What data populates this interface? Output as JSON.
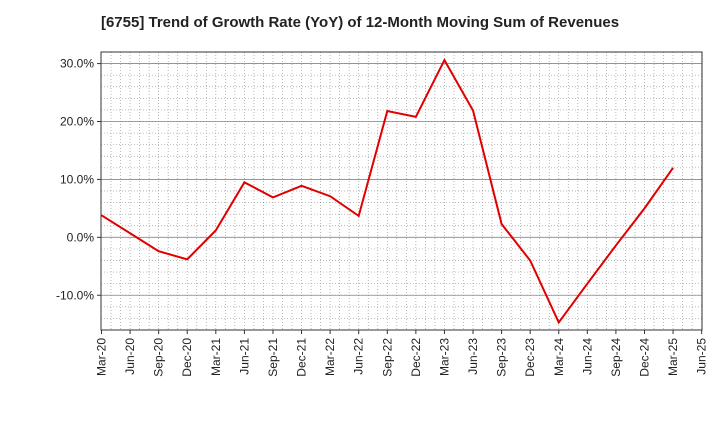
{
  "chart_data": {
    "type": "line",
    "title": "[6755]  Trend of Growth Rate (YoY) of 12-Month Moving Sum of Revenues",
    "xlabel": "",
    "ylabel": "",
    "ylim": [
      -16,
      32
    ],
    "y_ticks": [
      30,
      20,
      10,
      0,
      -10
    ],
    "y_tick_labels": [
      "30.0%",
      "20.0%",
      "10.0%",
      "0.0%",
      "-10.0%"
    ],
    "x_tick_labels": [
      "Mar-20",
      "Jun-20",
      "Sep-20",
      "Dec-20",
      "Mar-21",
      "Jun-21",
      "Sep-21",
      "Dec-21",
      "Mar-22",
      "Jun-22",
      "Sep-22",
      "Dec-22",
      "Mar-23",
      "Jun-23",
      "Sep-23",
      "Dec-23",
      "Mar-24",
      "Jun-24",
      "Sep-24",
      "Dec-24",
      "Mar-25",
      "Jun-25"
    ],
    "grid": true,
    "line_color": "#e00000",
    "series": [
      {
        "values": [
          3.8,
          0.7,
          -2.4,
          -3.8,
          1.2,
          9.5,
          6.9,
          8.9,
          7.1,
          3.7,
          21.8,
          20.8,
          30.6,
          21.9,
          2.3,
          -4.0,
          -14.7,
          -8.0,
          -1.4,
          5.0,
          12.0
        ]
      }
    ]
  }
}
